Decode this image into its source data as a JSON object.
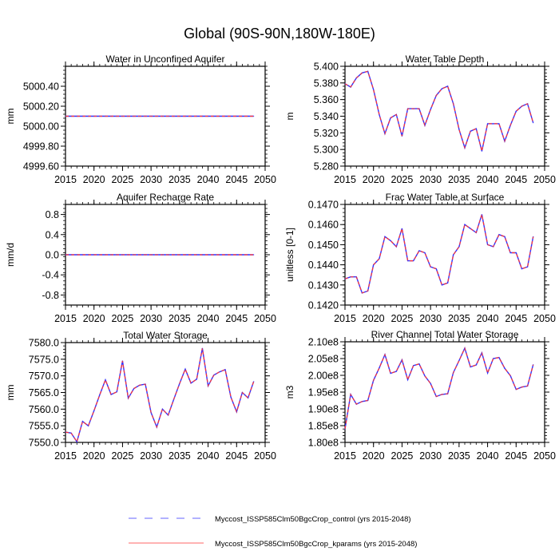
{
  "title": "Global (90S-90N,180W-180E)",
  "colors": {
    "control": "#3333ff",
    "kparams": "#ff3333",
    "axis": "#000000"
  },
  "legend": [
    {
      "label": "Myccost_ISSP585Clm50BgcCrop_control (yrs 2015-2048)",
      "style": "dashed",
      "color": "#6666ff"
    },
    {
      "label": "Myccost_ISSP585Clm50BgcCrop_kparams (yrs 2015-2048)",
      "style": "solid",
      "color": "#ff6666"
    }
  ],
  "chart_data": [
    {
      "type": "line",
      "title": "Water in Unconfined Aquifer",
      "ylabel": "mm",
      "xlim": [
        2015,
        2050
      ],
      "ylim": [
        4999.6,
        5000.6
      ],
      "xticks": [
        "2015",
        "2020",
        "2025",
        "2030",
        "2035",
        "2040",
        "2045",
        "2050"
      ],
      "yticks": [
        {
          "v": 4999.6,
          "label": "4999.60"
        },
        {
          "v": 4999.8,
          "label": "4999.80"
        },
        {
          "v": 5000.0,
          "label": "5000.00"
        },
        {
          "v": 5000.2,
          "label": "5000.20"
        },
        {
          "v": 5000.4,
          "label": "5000.40"
        }
      ],
      "x_start": 2015,
      "series": [
        {
          "name": "control",
          "values": [
            5000.1,
            5000.1,
            5000.1,
            5000.1,
            5000.1,
            5000.1,
            5000.1,
            5000.1,
            5000.1,
            5000.1,
            5000.1,
            5000.1,
            5000.1,
            5000.1,
            5000.1,
            5000.1,
            5000.1,
            5000.1,
            5000.1,
            5000.1,
            5000.1,
            5000.1,
            5000.1,
            5000.1,
            5000.1,
            5000.1,
            5000.1,
            5000.1,
            5000.1,
            5000.1,
            5000.1,
            5000.1,
            5000.1,
            5000.1
          ]
        }
      ]
    },
    {
      "type": "line",
      "title": "Water Table Depth",
      "ylabel": "m",
      "xlim": [
        2015,
        2050
      ],
      "ylim": [
        5.28,
        5.4
      ],
      "xticks": [
        "2015",
        "2020",
        "2025",
        "2030",
        "2035",
        "2040",
        "2045",
        "2050"
      ],
      "yticks": [
        {
          "v": 5.28,
          "label": "5.280"
        },
        {
          "v": 5.3,
          "label": "5.300"
        },
        {
          "v": 5.32,
          "label": "5.320"
        },
        {
          "v": 5.34,
          "label": "5.340"
        },
        {
          "v": 5.36,
          "label": "5.360"
        },
        {
          "v": 5.38,
          "label": "5.380"
        },
        {
          "v": 5.4,
          "label": "5.400"
        }
      ],
      "x_start": 2015,
      "series": [
        {
          "name": "control",
          "values": [
            5.379,
            5.375,
            5.386,
            5.392,
            5.394,
            5.372,
            5.342,
            5.319,
            5.338,
            5.342,
            5.316,
            5.349,
            5.349,
            5.349,
            5.329,
            5.348,
            5.365,
            5.373,
            5.376,
            5.355,
            5.324,
            5.302,
            5.322,
            5.325,
            5.298,
            5.331,
            5.331,
            5.331,
            5.31,
            5.329,
            5.346,
            5.352,
            5.355,
            5.332
          ]
        }
      ]
    },
    {
      "type": "line",
      "title": "Aquifer Recharge Rate",
      "ylabel": "mm/d",
      "xlim": [
        2015,
        2050
      ],
      "ylim": [
        -1.0,
        1.0
      ],
      "xticks": [
        "2015",
        "2020",
        "2025",
        "2030",
        "2035",
        "2040",
        "2045",
        "2050"
      ],
      "yticks": [
        {
          "v": -0.8,
          "label": "-0.8"
        },
        {
          "v": -0.4,
          "label": "-0.4"
        },
        {
          "v": 0.0,
          "label": "0.0"
        },
        {
          "v": 0.4,
          "label": "0.4"
        },
        {
          "v": 0.8,
          "label": "0.8"
        }
      ],
      "x_start": 2015,
      "series": [
        {
          "name": "control",
          "values": [
            0,
            0,
            0,
            0,
            0,
            0,
            0,
            0,
            0,
            0,
            0,
            0,
            0,
            0,
            0,
            0,
            0,
            0,
            0,
            0,
            0,
            0,
            0,
            0,
            0,
            0,
            0,
            0,
            0,
            0,
            0,
            0,
            0,
            0
          ]
        }
      ]
    },
    {
      "type": "line",
      "title": "Frac Water Table at Surface",
      "ylabel": "unitless [0-1]",
      "xlim": [
        2015,
        2050
      ],
      "ylim": [
        0.142,
        0.147
      ],
      "xticks": [
        "2015",
        "2020",
        "2025",
        "2030",
        "2035",
        "2040",
        "2045",
        "2050"
      ],
      "yticks": [
        {
          "v": 0.142,
          "label": "0.1420"
        },
        {
          "v": 0.143,
          "label": "0.1430"
        },
        {
          "v": 0.144,
          "label": "0.1440"
        },
        {
          "v": 0.145,
          "label": "0.1450"
        },
        {
          "v": 0.146,
          "label": "0.1460"
        },
        {
          "v": 0.147,
          "label": "0.1470"
        }
      ],
      "x_start": 2015,
      "series": [
        {
          "name": "control",
          "values": [
            0.1433,
            0.1434,
            0.1434,
            0.1426,
            0.1427,
            0.144,
            0.1443,
            0.1454,
            0.1452,
            0.1449,
            0.1458,
            0.1442,
            0.1442,
            0.1447,
            0.1446,
            0.1439,
            0.1438,
            0.143,
            0.1431,
            0.1445,
            0.1449,
            0.146,
            0.1458,
            0.1456,
            0.1465,
            0.145,
            0.1449,
            0.1455,
            0.1454,
            0.1446,
            0.1446,
            0.1438,
            0.1439,
            0.1454
          ]
        }
      ]
    },
    {
      "type": "line",
      "title": "Total Water Storage",
      "ylabel": "mm",
      "xlim": [
        2015,
        2050
      ],
      "ylim": [
        7550,
        7580
      ],
      "xticks": [
        "2015",
        "2020",
        "2025",
        "2030",
        "2035",
        "2040",
        "2045",
        "2050"
      ],
      "yticks": [
        {
          "v": 7550,
          "label": "7550.0"
        },
        {
          "v": 7555,
          "label": "7555.0"
        },
        {
          "v": 7560,
          "label": "7560.0"
        },
        {
          "v": 7565,
          "label": "7565.0"
        },
        {
          "v": 7570,
          "label": "7570.0"
        },
        {
          "v": 7575,
          "label": "7575.0"
        },
        {
          "v": 7580,
          "label": "7580.0"
        }
      ],
      "x_start": 2015,
      "series": [
        {
          "name": "control",
          "values": [
            7553.1,
            7552.8,
            7550.2,
            7556.3,
            7555.0,
            7559.5,
            7564.3,
            7568.8,
            7564.4,
            7565.2,
            7574.5,
            7563.3,
            7566.2,
            7567.2,
            7567.5,
            7559.0,
            7554.6,
            7560.0,
            7558.2,
            7563.0,
            7567.7,
            7572.0,
            7567.8,
            7569.0,
            7578.3,
            7567.0,
            7570.2,
            7571.2,
            7571.9,
            7563.6,
            7559.2,
            7565.0,
            7563.4,
            7568.3
          ]
        }
      ]
    },
    {
      "type": "line",
      "title": "River Channel Total Water Storage",
      "ylabel": "m3",
      "xlim": [
        2015,
        2050
      ],
      "ylim": [
        180000000.0,
        210000000.0
      ],
      "xticks": [
        "2015",
        "2020",
        "2025",
        "2030",
        "2035",
        "2040",
        "2045",
        "2050"
      ],
      "yticks": [
        {
          "v": 180000000.0,
          "label": "1.80e8"
        },
        {
          "v": 185000000.0,
          "label": "1.85e8"
        },
        {
          "v": 190000000.0,
          "label": "1.90e8"
        },
        {
          "v": 195000000.0,
          "label": "1.95e8"
        },
        {
          "v": 200000000.0,
          "label": "2.00e8"
        },
        {
          "v": 205000000.0,
          "label": "2.05e8"
        },
        {
          "v": 210000000.0,
          "label": "2.10e8"
        }
      ],
      "x_start": 2015,
      "series": [
        {
          "name": "control",
          "values": [
            184000000.0,
            194300000.0,
            191400000.0,
            192200000.0,
            192500000.0,
            198500000.0,
            202200000.0,
            206200000.0,
            200600000.0,
            201200000.0,
            204600000.0,
            198700000.0,
            202900000.0,
            203400000.0,
            199800000.0,
            197600000.0,
            193700000.0,
            194300000.0,
            194500000.0,
            200800000.0,
            204400000.0,
            208100000.0,
            202500000.0,
            203100000.0,
            206700000.0,
            200700000.0,
            205000000.0,
            205300000.0,
            202100000.0,
            199900000.0,
            195800000.0,
            196500000.0,
            196800000.0,
            203200000.0
          ]
        }
      ]
    }
  ]
}
